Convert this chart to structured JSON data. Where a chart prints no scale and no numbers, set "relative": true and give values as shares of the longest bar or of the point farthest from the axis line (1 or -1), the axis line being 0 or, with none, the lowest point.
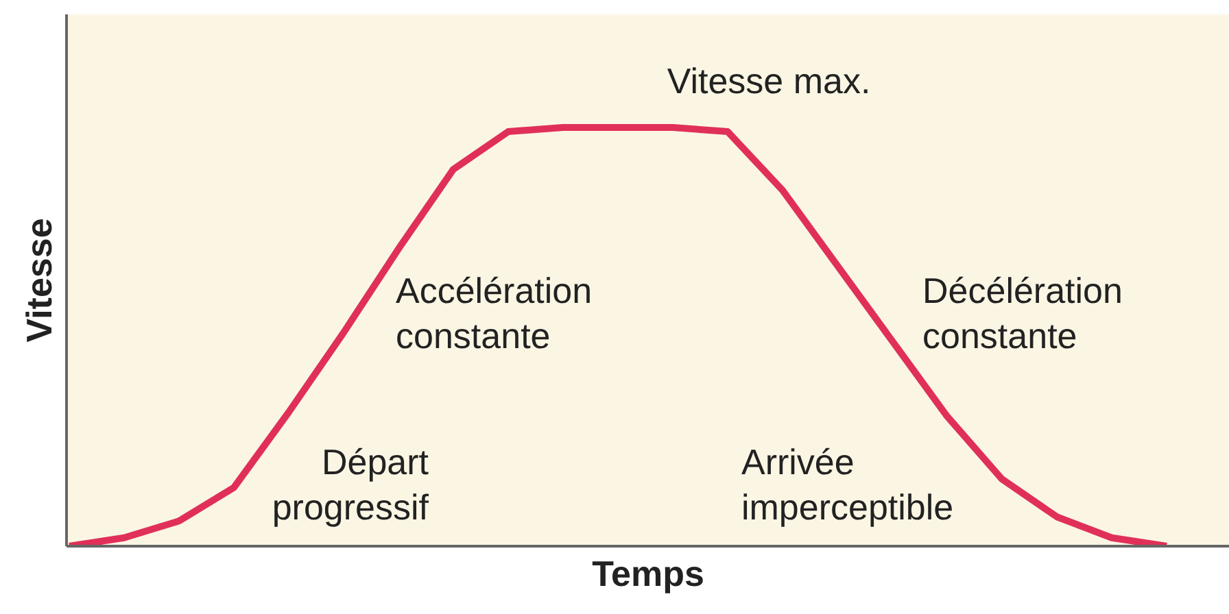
{
  "chart_data": {
    "type": "line",
    "relative": true,
    "xlabel": "Temps",
    "ylabel": "Vitesse",
    "categories": [
      null,
      null,
      null,
      null,
      null,
      null,
      null,
      null,
      null,
      null,
      null,
      null,
      null,
      null,
      null,
      null,
      null,
      null,
      null,
      null,
      null
    ],
    "series": [
      {
        "color": "#e0305a",
        "values": [
          0.0,
          0.02,
          0.06,
          0.14,
          0.32,
          0.51,
          0.71,
          0.9,
          0.99,
          1,
          1,
          1,
          0.99,
          0.85,
          0.67,
          0.49,
          0.31,
          0.16,
          0.07,
          0.02,
          0.0
        ]
      }
    ],
    "annotations": [
      "Vitesse max.",
      "Accélération\nconstante",
      "Décélération\nconstante",
      "Départ\nprogressif",
      "Arrivée\nimperceptible"
    ],
    "marker": "none",
    "line_style": "solid"
  }
}
